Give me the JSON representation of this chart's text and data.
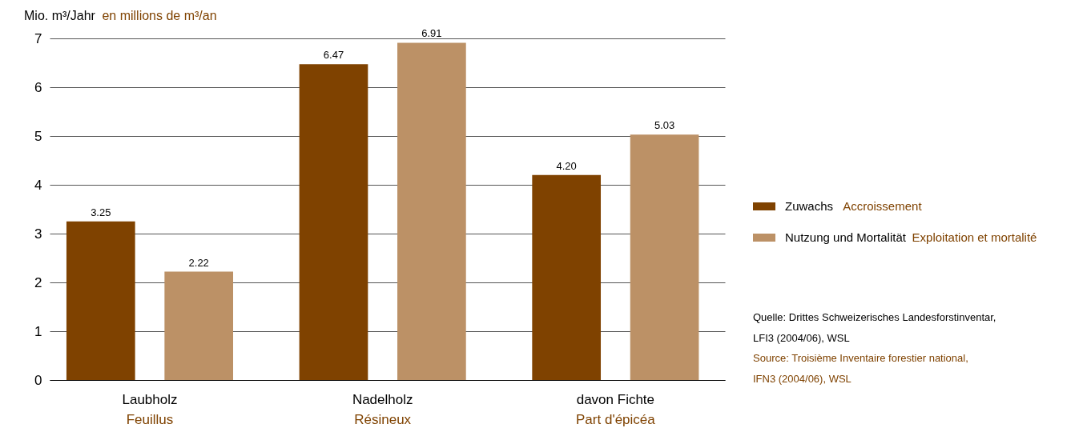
{
  "chart_data": {
    "type": "bar",
    "ylabel": "Mio. m³/Jahr\nen millions de m³/an",
    "categories": [
      "Laubholz\nFeuillus",
      "Nadelholz\nRésineux",
      "davon Fichte\nPart d'épicéa"
    ],
    "series": [
      {
        "name": "Zuwachs\nAccroissement",
        "color": "#7f4200",
        "values": [
          3.25,
          6.47,
          4.2
        ],
        "value_labels": [
          "3.25",
          "6.47",
          "4.20"
        ]
      },
      {
        "name": "Nutzung und Mortalität\nExploitation et mortalité",
        "color": "#bc9166",
        "values": [
          2.22,
          6.91,
          5.03
        ],
        "value_labels": [
          "2.22",
          "6.91",
          "5.03"
        ]
      }
    ],
    "ylim": [
      0,
      7
    ],
    "yticks": [
      0,
      1,
      2,
      3,
      4,
      5,
      6,
      7
    ],
    "grid": "y",
    "legend": "right",
    "annotations": [
      "Quelle: Drittes Schweizerisches Landesforstinventar,\nLFI3 (2004/06), WSL",
      "Source: Troisième Inventaire forestier national,\nIFN3 (2004/06), WSL"
    ]
  }
}
